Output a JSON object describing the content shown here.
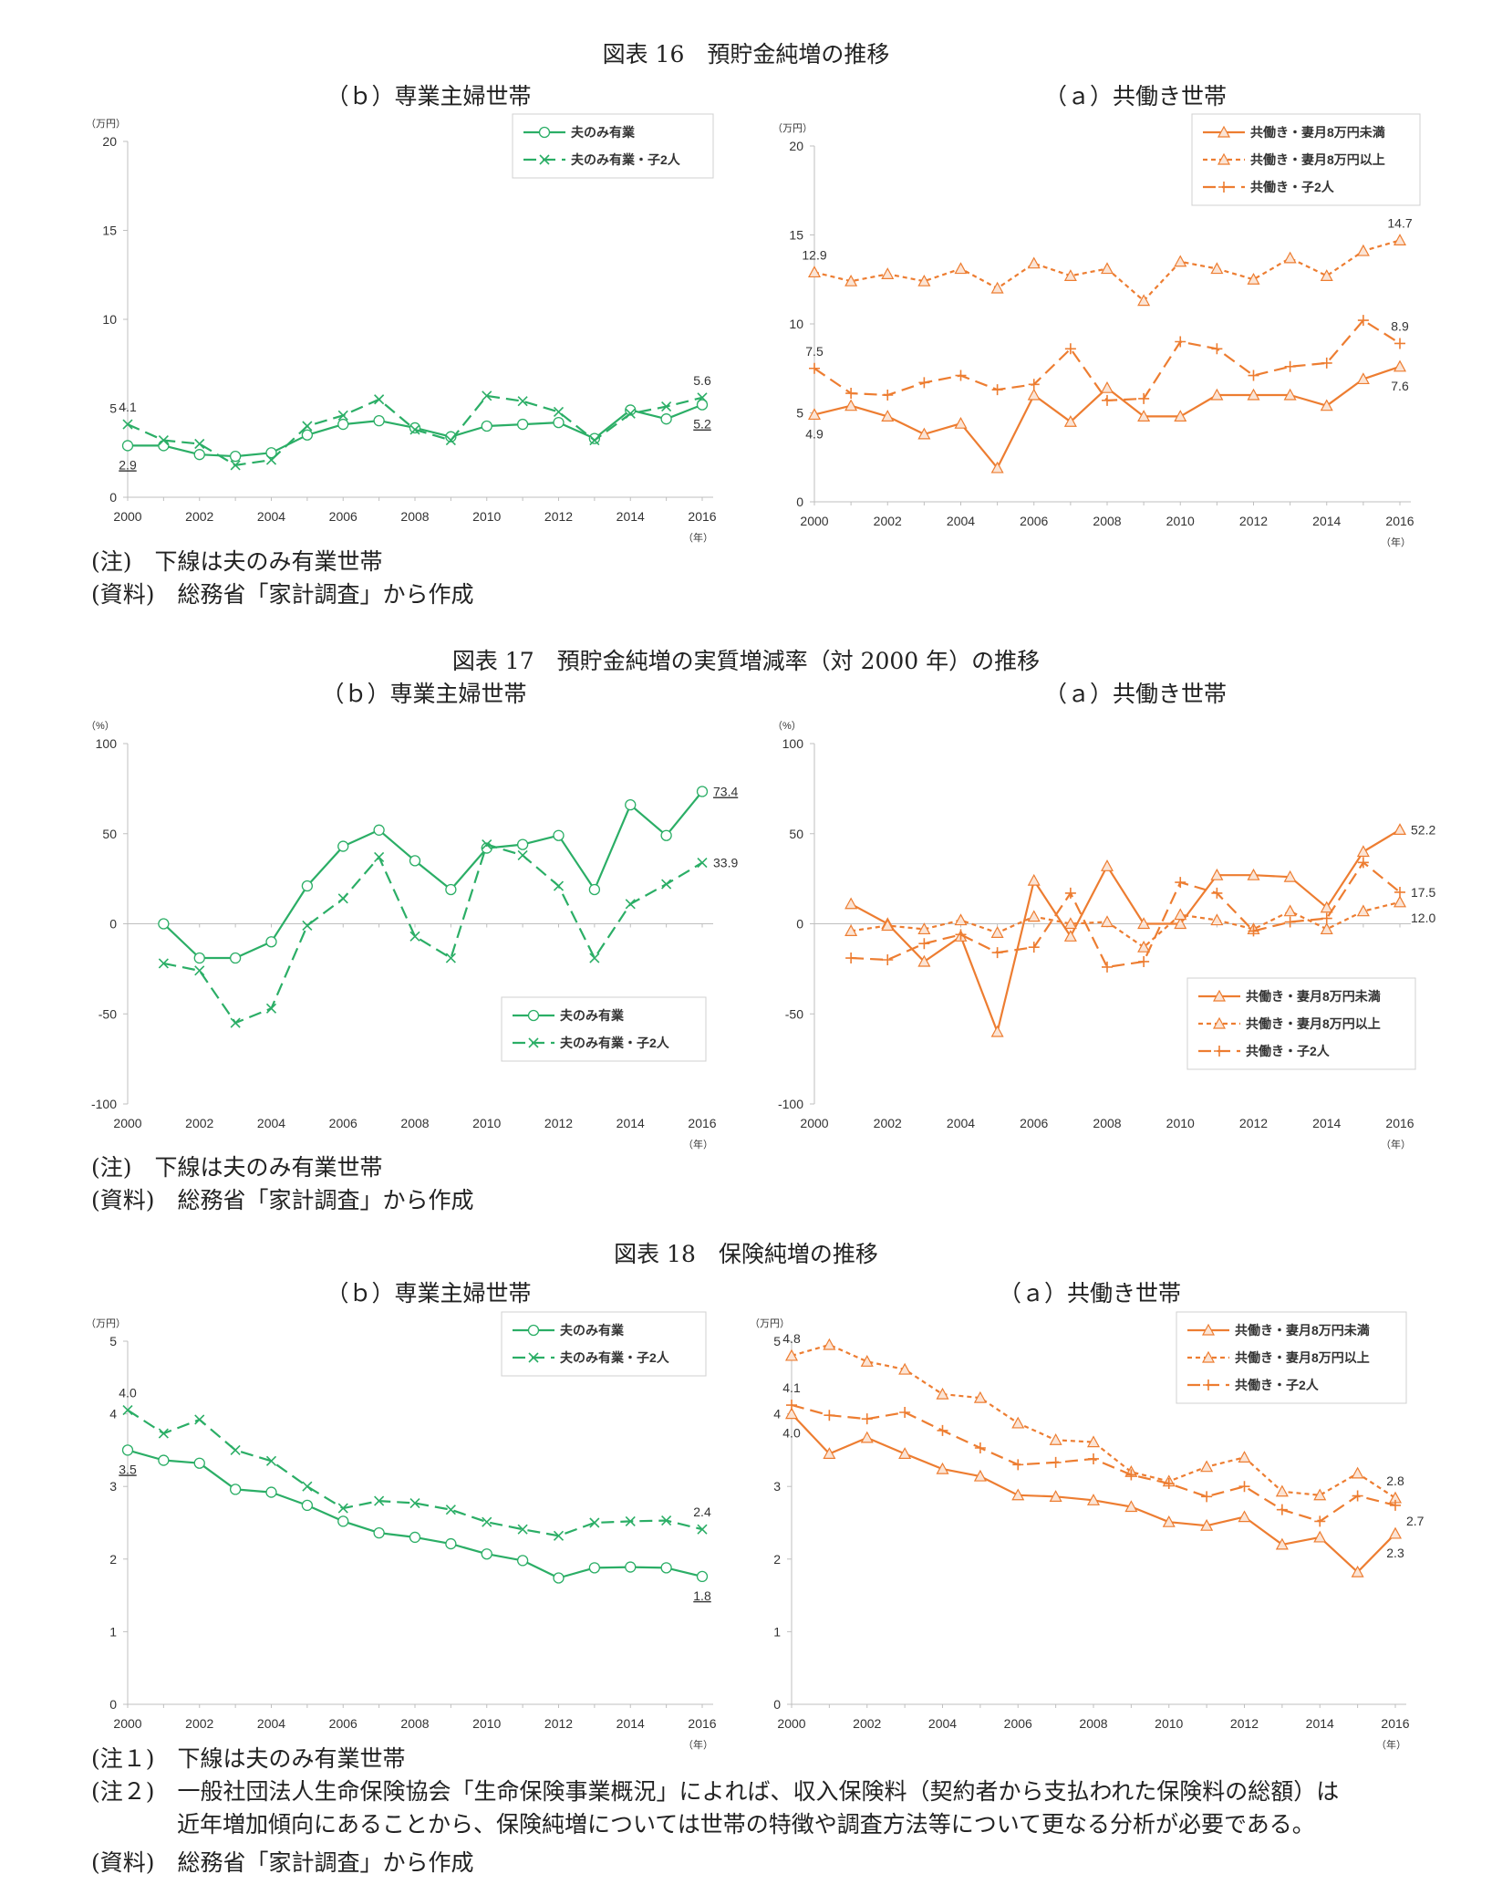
{
  "figures": [
    {
      "title": "図表 16　預貯金純増の推移",
      "notes": [
        "(注)　下線は夫のみ有業世帯",
        "(資料)　総務省「家計調査」から作成"
      ]
    },
    {
      "title": "図表 17　預貯金純増の実質増減率（対 2000 年）の推移",
      "notes": [
        "(注)　下線は夫のみ有業世帯",
        "(資料)　総務省「家計調査」から作成"
      ]
    },
    {
      "title": "図表 18　保険純増の推移",
      "notes": [
        "(注１)　下線は夫のみ有業世帯",
        "(注２)　一般社団法人生命保険協会「生命保険事業概況」によれば、収入保険料（契約者から支払われた保険料の総額）は",
        "近年増加傾向にあることから、保険純増については世帯の特徴や調査方法等について更なる分析が必要である。",
        "(資料)　総務省「家計調査」から作成"
      ]
    }
  ],
  "colors": {
    "green": "#2BAE66",
    "orange": "#ED7D31",
    "axis": "#BFBFBF",
    "text": "#333333"
  },
  "chart_data": [
    {
      "type": "line",
      "title": "（ｂ）専業主婦世帯",
      "ylabel": "（万円）",
      "xlabel": "（年）",
      "ylim": [
        0,
        20
      ],
      "yticks": [
        0,
        5,
        10,
        15,
        20
      ],
      "x": [
        2000,
        2001,
        2002,
        2003,
        2004,
        2005,
        2006,
        2007,
        2008,
        2009,
        2010,
        2011,
        2012,
        2013,
        2014,
        2015,
        2016
      ],
      "xticks": [
        2000,
        2002,
        2004,
        2006,
        2008,
        2010,
        2012,
        2014,
        2016
      ],
      "legend_position": "top-right",
      "series": [
        {
          "name": "夫のみ有業",
          "color": "#2BAE66",
          "dash": "solid",
          "marker": "circle",
          "values": [
            2.9,
            2.9,
            2.4,
            2.3,
            2.5,
            3.5,
            4.1,
            4.3,
            3.9,
            3.4,
            4.0,
            4.1,
            4.2,
            3.3,
            4.9,
            4.4,
            5.2
          ]
        },
        {
          "name": "夫のみ有業・子2人",
          "color": "#2BAE66",
          "dash": "long",
          "marker": "x",
          "values": [
            4.1,
            3.2,
            3.0,
            1.8,
            2.1,
            4.0,
            4.6,
            5.5,
            3.8,
            3.2,
            5.7,
            5.4,
            4.8,
            3.2,
            4.7,
            5.1,
            5.6
          ]
        }
      ],
      "annotations": [
        {
          "text": "4.1",
          "x": 2000,
          "y": 4.1,
          "pos": "above",
          "underline": false
        },
        {
          "text": "2.9",
          "x": 2000,
          "y": 2.9,
          "pos": "below",
          "underline": true
        },
        {
          "text": "5.6",
          "x": 2016,
          "y": 5.6,
          "pos": "above",
          "underline": false
        },
        {
          "text": "5.2",
          "x": 2016,
          "y": 5.2,
          "pos": "below",
          "underline": true
        }
      ]
    },
    {
      "type": "line",
      "title": "（ａ）共働き世帯",
      "ylabel": "（万円）",
      "xlabel": "（年）",
      "ylim": [
        0,
        20
      ],
      "yticks": [
        0,
        5,
        10,
        15,
        20
      ],
      "x": [
        2000,
        2001,
        2002,
        2003,
        2004,
        2005,
        2006,
        2007,
        2008,
        2009,
        2010,
        2011,
        2012,
        2013,
        2014,
        2015,
        2016
      ],
      "xticks": [
        2000,
        2002,
        2004,
        2006,
        2008,
        2010,
        2012,
        2014,
        2016
      ],
      "legend_position": "top-right",
      "series": [
        {
          "name": "共働き・妻月8万円未満",
          "color": "#ED7D31",
          "dash": "solid",
          "marker": "triangle",
          "values": [
            4.9,
            5.4,
            4.8,
            3.8,
            4.4,
            1.9,
            6.0,
            4.5,
            6.4,
            4.8,
            4.8,
            6.0,
            6.0,
            6.0,
            5.4,
            6.9,
            7.6
          ]
        },
        {
          "name": "共働き・妻月8万円以上",
          "color": "#ED7D31",
          "dash": "short",
          "marker": "triangle",
          "values": [
            12.9,
            12.4,
            12.8,
            12.4,
            13.1,
            12.0,
            13.4,
            12.7,
            13.1,
            11.3,
            13.5,
            13.1,
            12.5,
            13.7,
            12.7,
            14.1,
            14.7
          ]
        },
        {
          "name": "共働き・子2人",
          "color": "#ED7D31",
          "dash": "long",
          "marker": "plus",
          "values": [
            7.5,
            6.1,
            6.0,
            6.7,
            7.1,
            6.3,
            6.6,
            8.6,
            5.7,
            5.8,
            9.0,
            8.6,
            7.1,
            7.6,
            7.8,
            10.2,
            8.9
          ]
        }
      ],
      "annotations": [
        {
          "text": "12.9",
          "x": 2000,
          "y": 12.9,
          "pos": "above",
          "underline": false
        },
        {
          "text": "7.5",
          "x": 2000,
          "y": 7.5,
          "pos": "above",
          "underline": false
        },
        {
          "text": "4.9",
          "x": 2000,
          "y": 4.9,
          "pos": "below",
          "underline": false
        },
        {
          "text": "14.7",
          "x": 2016,
          "y": 14.7,
          "pos": "above",
          "underline": false
        },
        {
          "text": "8.9",
          "x": 2016,
          "y": 8.9,
          "pos": "above",
          "underline": false
        },
        {
          "text": "7.6",
          "x": 2016,
          "y": 7.6,
          "pos": "below",
          "underline": false
        }
      ]
    },
    {
      "type": "line",
      "title": "（ｂ）専業主婦世帯",
      "ylabel": "（%）",
      "xlabel": "（年）",
      "ylim": [
        -100,
        100
      ],
      "yticks": [
        -100,
        -50,
        0,
        50,
        100
      ],
      "x": [
        2000,
        2001,
        2002,
        2003,
        2004,
        2005,
        2006,
        2007,
        2008,
        2009,
        2010,
        2011,
        2012,
        2013,
        2014,
        2015,
        2016
      ],
      "xticks": [
        2000,
        2002,
        2004,
        2006,
        2008,
        2010,
        2012,
        2014,
        2016
      ],
      "legend_position": "bottom-right",
      "series": [
        {
          "name": "夫のみ有業",
          "color": "#2BAE66",
          "dash": "solid",
          "marker": "circle",
          "values": [
            null,
            0,
            -19,
            -19,
            -10,
            21,
            43,
            52,
            35,
            19,
            42,
            44,
            49,
            19,
            66,
            49,
            73.4
          ]
        },
        {
          "name": "夫のみ有業・子2人",
          "color": "#2BAE66",
          "dash": "long",
          "marker": "x",
          "values": [
            null,
            -22,
            -26,
            -55,
            -47,
            -1,
            14,
            37,
            -7,
            -19,
            44,
            38,
            21,
            -19,
            11,
            22,
            33.9
          ]
        }
      ],
      "annotations": [
        {
          "text": "73.4",
          "x": 2016,
          "y": 73.4,
          "pos": "right",
          "underline": true
        },
        {
          "text": "33.9",
          "x": 2016,
          "y": 33.9,
          "pos": "right",
          "underline": false
        }
      ]
    },
    {
      "type": "line",
      "title": "（ａ）共働き世帯",
      "ylabel": "（%）",
      "xlabel": "（年）",
      "ylim": [
        -100,
        100
      ],
      "yticks": [
        -100,
        -50,
        0,
        50,
        100
      ],
      "x": [
        2000,
        2001,
        2002,
        2003,
        2004,
        2005,
        2006,
        2007,
        2008,
        2009,
        2010,
        2011,
        2012,
        2013,
        2014,
        2015,
        2016
      ],
      "xticks": [
        2000,
        2002,
        2004,
        2006,
        2008,
        2010,
        2012,
        2014,
        2016
      ],
      "legend_position": "bottom-right",
      "series": [
        {
          "name": "共働き・妻月8万円未満",
          "color": "#ED7D31",
          "dash": "solid",
          "marker": "triangle",
          "values": [
            null,
            11,
            0,
            -21,
            -7,
            -60,
            24,
            -7,
            32,
            0,
            0,
            27,
            27,
            26,
            9,
            40,
            52.2
          ]
        },
        {
          "name": "共働き・妻月8万円以上",
          "color": "#ED7D31",
          "dash": "short",
          "marker": "triangle",
          "values": [
            null,
            -4,
            -1,
            -3,
            2,
            -5,
            4,
            0,
            1,
            -13,
            5,
            2,
            -3,
            7,
            -3,
            7,
            12.0
          ]
        },
        {
          "name": "共働き・子2人",
          "color": "#ED7D31",
          "dash": "long",
          "marker": "plus",
          "values": [
            null,
            -19,
            -20,
            -11,
            -6,
            -16,
            -13,
            17,
            -24,
            -21,
            23,
            17,
            -4,
            1,
            3,
            34,
            17.5
          ]
        }
      ],
      "annotations": [
        {
          "text": "52.2",
          "x": 2016,
          "y": 52.2,
          "pos": "right",
          "underline": false
        },
        {
          "text": "17.5",
          "x": 2016,
          "y": 17.5,
          "pos": "right",
          "underline": false
        },
        {
          "text": "12.0",
          "x": 2016,
          "y": 12.0,
          "pos": "rightbelow",
          "underline": false
        }
      ]
    },
    {
      "type": "line",
      "title": "（ｂ）専業主婦世帯",
      "ylabel": "（万円）",
      "xlabel": "（年）",
      "ylim": [
        0,
        5
      ],
      "yticks": [
        0,
        1,
        2,
        3,
        4,
        5
      ],
      "x": [
        2000,
        2001,
        2002,
        2003,
        2004,
        2005,
        2006,
        2007,
        2008,
        2009,
        2010,
        2011,
        2012,
        2013,
        2014,
        2015,
        2016
      ],
      "xticks": [
        2000,
        2002,
        2004,
        2006,
        2008,
        2010,
        2012,
        2014,
        2016
      ],
      "legend_position": "top-right",
      "series": [
        {
          "name": "夫のみ有業",
          "color": "#2BAE66",
          "dash": "solid",
          "marker": "circle",
          "values": [
            3.5,
            3.36,
            3.32,
            2.96,
            2.92,
            2.74,
            2.52,
            2.36,
            2.3,
            2.21,
            2.07,
            1.98,
            1.74,
            1.88,
            1.89,
            1.88,
            1.76
          ]
        },
        {
          "name": "夫のみ有業・子2人",
          "color": "#2BAE66",
          "dash": "long",
          "marker": "x",
          "values": [
            4.05,
            3.73,
            3.92,
            3.5,
            3.35,
            3.0,
            2.7,
            2.8,
            2.77,
            2.68,
            2.51,
            2.41,
            2.32,
            2.5,
            2.52,
            2.53,
            2.41
          ]
        }
      ],
      "annotations": [
        {
          "text": "4.0",
          "x": 2000,
          "y": 4.05,
          "pos": "above",
          "underline": false
        },
        {
          "text": "3.5",
          "x": 2000,
          "y": 3.5,
          "pos": "below",
          "underline": true
        },
        {
          "text": "2.4",
          "x": 2016,
          "y": 2.41,
          "pos": "above",
          "underline": false
        },
        {
          "text": "1.8",
          "x": 2016,
          "y": 1.76,
          "pos": "below",
          "underline": true
        }
      ]
    },
    {
      "type": "line",
      "title": "（ａ）共働き世帯",
      "ylabel": "（万円）",
      "xlabel": "（年）",
      "ylim": [
        0,
        5
      ],
      "yticks": [
        0,
        1,
        2,
        3,
        4,
        5
      ],
      "x": [
        2000,
        2001,
        2002,
        2003,
        2004,
        2005,
        2006,
        2007,
        2008,
        2009,
        2010,
        2011,
        2012,
        2013,
        2014,
        2015,
        2016
      ],
      "xticks": [
        2000,
        2002,
        2004,
        2006,
        2008,
        2010,
        2012,
        2014,
        2016
      ],
      "legend_position": "top-right",
      "series": [
        {
          "name": "共働き・妻月8万円未満",
          "color": "#ED7D31",
          "dash": "solid",
          "marker": "triangle",
          "values": [
            4.0,
            3.45,
            3.67,
            3.45,
            3.24,
            3.14,
            2.88,
            2.86,
            2.81,
            2.72,
            2.51,
            2.46,
            2.58,
            2.2,
            2.3,
            1.82,
            2.35
          ]
        },
        {
          "name": "共働き・妻月8万円以上",
          "color": "#ED7D31",
          "dash": "short",
          "marker": "triangle",
          "values": [
            4.8,
            4.95,
            4.72,
            4.61,
            4.27,
            4.22,
            3.87,
            3.64,
            3.61,
            3.2,
            3.07,
            3.27,
            3.4,
            2.93,
            2.88,
            3.18,
            2.84
          ]
        },
        {
          "name": "共働き・子2人",
          "color": "#ED7D31",
          "dash": "long",
          "marker": "plus",
          "values": [
            4.12,
            3.98,
            3.93,
            4.02,
            3.77,
            3.53,
            3.3,
            3.33,
            3.38,
            3.16,
            3.04,
            2.86,
            3.0,
            2.68,
            2.52,
            2.87,
            2.74
          ]
        }
      ],
      "annotations": [
        {
          "text": "4.8",
          "x": 2000,
          "y": 4.8,
          "pos": "above",
          "underline": false
        },
        {
          "text": "4.1",
          "x": 2000,
          "y": 4.12,
          "pos": "above",
          "underline": false
        },
        {
          "text": "4.0",
          "x": 2000,
          "y": 4.0,
          "pos": "below",
          "underline": false
        },
        {
          "text": "2.8",
          "x": 2016,
          "y": 2.84,
          "pos": "above",
          "underline": false
        },
        {
          "text": "2.7",
          "x": 2016,
          "y": 2.74,
          "pos": "rightbelow",
          "underline": false
        },
        {
          "text": "2.3",
          "x": 2016,
          "y": 2.35,
          "pos": "below",
          "underline": false
        }
      ]
    }
  ]
}
